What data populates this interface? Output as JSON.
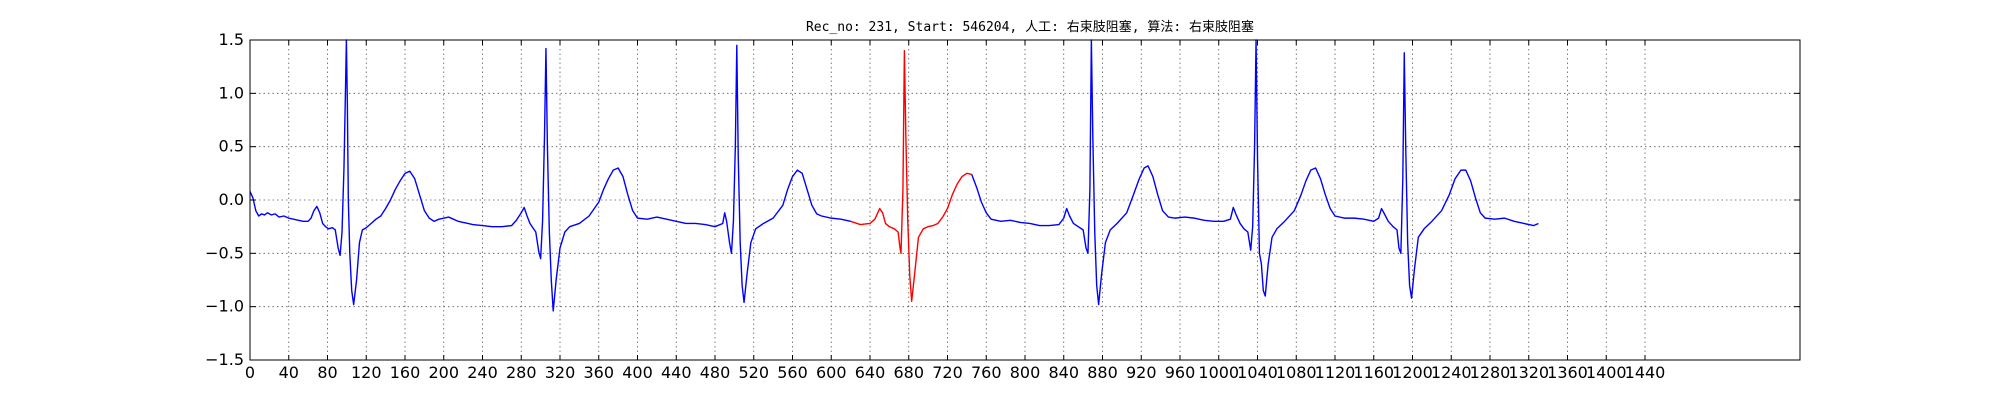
{
  "chart_data": {
    "type": "line",
    "title": "Rec_no: 231, Start: 546204, 人工: 右束肢阻塞, 算法: 右束肢阻塞",
    "xlabel": "",
    "ylabel": "",
    "xlim": [
      0,
      1600
    ],
    "ylim": [
      -1.5,
      1.5
    ],
    "yticks": [
      -1.5,
      -1.0,
      -0.5,
      0.0,
      0.5,
      1.0,
      1.5
    ],
    "ytick_labels": [
      "−1.5",
      "−1.0",
      "−0.5",
      "0.0",
      "0.5",
      "1.0",
      "1.5"
    ],
    "xticks": [
      0,
      40,
      80,
      120,
      160,
      200,
      240,
      280,
      320,
      360,
      400,
      440,
      480,
      520,
      560,
      600,
      640,
      680,
      720,
      760,
      800,
      840,
      880,
      920,
      960,
      1000,
      1040,
      1080,
      1120,
      1160,
      1200,
      1240,
      1280,
      1320,
      1360,
      1400,
      1440
    ],
    "xtick_labels": [
      "0",
      "40",
      "80",
      "120",
      "160",
      "200",
      "240",
      "280",
      "320",
      "360",
      "400",
      "440",
      "480",
      "520",
      "560",
      "600",
      "640",
      "680",
      "720",
      "760",
      "800",
      "840",
      "880",
      "920",
      "960",
      "1000",
      "1040",
      "1080",
      "1120",
      "1160",
      "1200",
      "1240",
      "1280",
      "1320",
      "1360",
      "1400",
      "1440"
    ],
    "grid": true,
    "series": [
      {
        "color": "#0000ff",
        "points": [
          [
            0,
            0.08
          ],
          [
            3,
            0.02
          ],
          [
            6,
            -0.1
          ],
          [
            9,
            -0.15
          ],
          [
            12,
            -0.13
          ],
          [
            15,
            -0.14
          ],
          [
            18,
            -0.12
          ],
          [
            22,
            -0.14
          ],
          [
            26,
            -0.13
          ],
          [
            30,
            -0.16
          ],
          [
            35,
            -0.15
          ],
          [
            40,
            -0.17
          ],
          [
            45,
            -0.18
          ],
          [
            50,
            -0.19
          ],
          [
            55,
            -0.2
          ],
          [
            60,
            -0.2
          ],
          [
            63,
            -0.17
          ],
          [
            66,
            -0.1
          ],
          [
            69,
            -0.06
          ],
          [
            72,
            -0.12
          ],
          [
            75,
            -0.22
          ],
          [
            78,
            -0.25
          ],
          [
            81,
            -0.27
          ],
          [
            85,
            -0.26
          ],
          [
            88,
            -0.28
          ],
          [
            91,
            -0.45
          ],
          [
            93,
            -0.52
          ],
          [
            95,
            -0.3
          ],
          [
            97,
            0.3
          ],
          [
            98.5,
            1.0
          ],
          [
            99.5,
            1.5
          ],
          [
            100.5,
            0.9
          ],
          [
            101.5,
            0.0
          ],
          [
            103,
            -0.5
          ],
          [
            105,
            -0.85
          ],
          [
            107,
            -0.98
          ],
          [
            110,
            -0.75
          ],
          [
            113,
            -0.4
          ],
          [
            116,
            -0.28
          ],
          [
            120,
            -0.26
          ],
          [
            125,
            -0.22
          ],
          [
            130,
            -0.18
          ],
          [
            135,
            -0.15
          ],
          [
            140,
            -0.08
          ],
          [
            145,
            0.0
          ],
          [
            150,
            0.1
          ],
          [
            155,
            0.18
          ],
          [
            160,
            0.25
          ],
          [
            165,
            0.27
          ],
          [
            170,
            0.2
          ],
          [
            175,
            0.05
          ],
          [
            180,
            -0.1
          ],
          [
            185,
            -0.17
          ],
          [
            190,
            -0.2
          ],
          [
            195,
            -0.18
          ],
          [
            200,
            -0.17
          ],
          [
            205,
            -0.16
          ],
          [
            210,
            -0.18
          ],
          [
            215,
            -0.2
          ],
          [
            220,
            -0.21
          ],
          [
            225,
            -0.22
          ],
          [
            230,
            -0.23
          ],
          [
            240,
            -0.24
          ],
          [
            250,
            -0.25
          ],
          [
            260,
            -0.25
          ],
          [
            270,
            -0.24
          ],
          [
            275,
            -0.19
          ],
          [
            280,
            -0.12
          ],
          [
            283,
            -0.07
          ],
          [
            286,
            -0.15
          ],
          [
            289,
            -0.22
          ],
          [
            292,
            -0.26
          ],
          [
            295,
            -0.3
          ],
          [
            298,
            -0.48
          ],
          [
            300,
            -0.55
          ],
          [
            302,
            -0.2
          ],
          [
            304,
            0.6
          ],
          [
            305.5,
            1.42
          ],
          [
            307,
            0.5
          ],
          [
            309,
            -0.3
          ],
          [
            311,
            -0.75
          ],
          [
            313,
            -1.04
          ],
          [
            316,
            -0.75
          ],
          [
            320,
            -0.45
          ],
          [
            325,
            -0.3
          ],
          [
            330,
            -0.25
          ],
          [
            340,
            -0.22
          ],
          [
            350,
            -0.15
          ],
          [
            360,
            -0.02
          ],
          [
            365,
            0.1
          ],
          [
            370,
            0.2
          ],
          [
            375,
            0.28
          ],
          [
            380,
            0.3
          ],
          [
            385,
            0.22
          ],
          [
            390,
            0.05
          ],
          [
            395,
            -0.1
          ],
          [
            400,
            -0.17
          ],
          [
            410,
            -0.18
          ],
          [
            420,
            -0.16
          ],
          [
            430,
            -0.18
          ],
          [
            440,
            -0.2
          ],
          [
            450,
            -0.22
          ],
          [
            460,
            -0.22
          ],
          [
            470,
            -0.23
          ],
          [
            480,
            -0.25
          ],
          [
            488,
            -0.22
          ],
          [
            490,
            -0.12
          ],
          [
            492,
            -0.2
          ],
          [
            495,
            -0.4
          ],
          [
            497,
            -0.5
          ],
          [
            499,
            -0.2
          ],
          [
            501,
            0.5
          ],
          [
            502.5,
            1.45
          ],
          [
            504,
            0.4
          ],
          [
            506,
            -0.4
          ],
          [
            508,
            -0.8
          ],
          [
            510,
            -0.96
          ],
          [
            513,
            -0.7
          ],
          [
            517,
            -0.4
          ],
          [
            522,
            -0.27
          ],
          [
            530,
            -0.22
          ],
          [
            540,
            -0.17
          ],
          [
            550,
            -0.05
          ],
          [
            555,
            0.1
          ],
          [
            560,
            0.22
          ],
          [
            565,
            0.28
          ],
          [
            570,
            0.25
          ],
          [
            575,
            0.1
          ],
          [
            580,
            -0.05
          ],
          [
            585,
            -0.13
          ],
          [
            590,
            -0.15
          ],
          [
            600,
            -0.17
          ],
          [
            610,
            -0.18
          ],
          [
            620,
            -0.2
          ]
        ]
      },
      {
        "color": "#ff0000",
        "points": [
          [
            620,
            -0.2
          ],
          [
            630,
            -0.23
          ],
          [
            640,
            -0.22
          ],
          [
            645,
            -0.18
          ],
          [
            650,
            -0.08
          ],
          [
            653,
            -0.12
          ],
          [
            656,
            -0.22
          ],
          [
            660,
            -0.25
          ],
          [
            665,
            -0.27
          ],
          [
            669,
            -0.3
          ],
          [
            671,
            -0.45
          ],
          [
            672,
            -0.5
          ],
          [
            674,
            0.1
          ],
          [
            675.5,
            1.4
          ],
          [
            677,
            0.6
          ],
          [
            679,
            -0.2
          ],
          [
            681,
            -0.7
          ],
          [
            683,
            -0.95
          ],
          [
            686,
            -0.7
          ],
          [
            690,
            -0.35
          ],
          [
            695,
            -0.27
          ],
          [
            700,
            -0.25
          ],
          [
            705,
            -0.24
          ],
          [
            710,
            -0.22
          ],
          [
            715,
            -0.16
          ],
          [
            720,
            -0.08
          ],
          [
            725,
            0.05
          ],
          [
            730,
            0.15
          ],
          [
            735,
            0.22
          ],
          [
            740,
            0.25
          ],
          [
            745,
            0.24
          ]
        ]
      },
      {
        "color": "#0000ff",
        "points": [
          [
            745,
            0.24
          ],
          [
            750,
            0.12
          ],
          [
            755,
            -0.02
          ],
          [
            760,
            -0.12
          ],
          [
            765,
            -0.18
          ],
          [
            775,
            -0.2
          ],
          [
            785,
            -0.19
          ],
          [
            795,
            -0.21
          ],
          [
            805,
            -0.22
          ],
          [
            815,
            -0.24
          ],
          [
            825,
            -0.24
          ],
          [
            835,
            -0.23
          ],
          [
            840,
            -0.17
          ],
          [
            843,
            -0.08
          ],
          [
            846,
            -0.15
          ],
          [
            850,
            -0.22
          ],
          [
            855,
            -0.25
          ],
          [
            860,
            -0.28
          ],
          [
            863,
            -0.45
          ],
          [
            865,
            -0.5
          ],
          [
            867,
            0.1
          ],
          [
            868.5,
            1.5
          ],
          [
            870,
            0.6
          ],
          [
            872,
            -0.3
          ],
          [
            874,
            -0.8
          ],
          [
            876,
            -0.98
          ],
          [
            879,
            -0.7
          ],
          [
            883,
            -0.4
          ],
          [
            888,
            -0.28
          ],
          [
            895,
            -0.22
          ],
          [
            905,
            -0.12
          ],
          [
            912,
            0.05
          ],
          [
            918,
            0.2
          ],
          [
            923,
            0.3
          ],
          [
            927,
            0.32
          ],
          [
            932,
            0.22
          ],
          [
            937,
            0.05
          ],
          [
            942,
            -0.1
          ],
          [
            948,
            -0.16
          ],
          [
            955,
            -0.17
          ],
          [
            965,
            -0.16
          ],
          [
            975,
            -0.17
          ],
          [
            985,
            -0.19
          ],
          [
            995,
            -0.2
          ],
          [
            1005,
            -0.2
          ],
          [
            1012,
            -0.18
          ],
          [
            1015,
            -0.07
          ],
          [
            1018,
            -0.14
          ],
          [
            1022,
            -0.22
          ],
          [
            1026,
            -0.27
          ],
          [
            1030,
            -0.3
          ],
          [
            1033,
            -0.47
          ],
          [
            1035,
            -0.25
          ],
          [
            1037,
            0.5
          ],
          [
            1038.5,
            1.5
          ],
          [
            1040,
            0.4
          ],
          [
            1042,
            -0.5
          ],
          [
            1044,
            -0.6
          ],
          [
            1046,
            -0.85
          ],
          [
            1048,
            -0.9
          ],
          [
            1051,
            -0.6
          ],
          [
            1055,
            -0.35
          ],
          [
            1060,
            -0.27
          ],
          [
            1068,
            -0.2
          ],
          [
            1078,
            -0.1
          ],
          [
            1085,
            0.05
          ],
          [
            1090,
            0.18
          ],
          [
            1095,
            0.28
          ],
          [
            1100,
            0.3
          ],
          [
            1105,
            0.2
          ],
          [
            1110,
            0.05
          ],
          [
            1115,
            -0.08
          ],
          [
            1120,
            -0.15
          ],
          [
            1130,
            -0.17
          ],
          [
            1140,
            -0.17
          ],
          [
            1150,
            -0.18
          ],
          [
            1160,
            -0.2
          ],
          [
            1165,
            -0.17
          ],
          [
            1168,
            -0.08
          ],
          [
            1171,
            -0.13
          ],
          [
            1175,
            -0.2
          ],
          [
            1180,
            -0.25
          ],
          [
            1184,
            -0.28
          ],
          [
            1186,
            -0.45
          ],
          [
            1188,
            -0.5
          ],
          [
            1190,
            0.2
          ],
          [
            1191.5,
            1.38
          ],
          [
            1193,
            0.5
          ],
          [
            1195,
            -0.4
          ],
          [
            1197,
            -0.8
          ],
          [
            1199,
            -0.92
          ],
          [
            1202,
            -0.65
          ],
          [
            1206,
            -0.35
          ],
          [
            1212,
            -0.27
          ],
          [
            1220,
            -0.2
          ],
          [
            1230,
            -0.1
          ],
          [
            1238,
            0.05
          ],
          [
            1244,
            0.2
          ],
          [
            1250,
            0.28
          ],
          [
            1255,
            0.28
          ],
          [
            1260,
            0.18
          ],
          [
            1265,
            0.02
          ],
          [
            1270,
            -0.12
          ],
          [
            1275,
            -0.17
          ],
          [
            1285,
            -0.18
          ],
          [
            1295,
            -0.17
          ],
          [
            1305,
            -0.2
          ],
          [
            1315,
            -0.22
          ],
          [
            1325,
            -0.24
          ],
          [
            1330,
            -0.22
          ]
        ]
      }
    ]
  }
}
